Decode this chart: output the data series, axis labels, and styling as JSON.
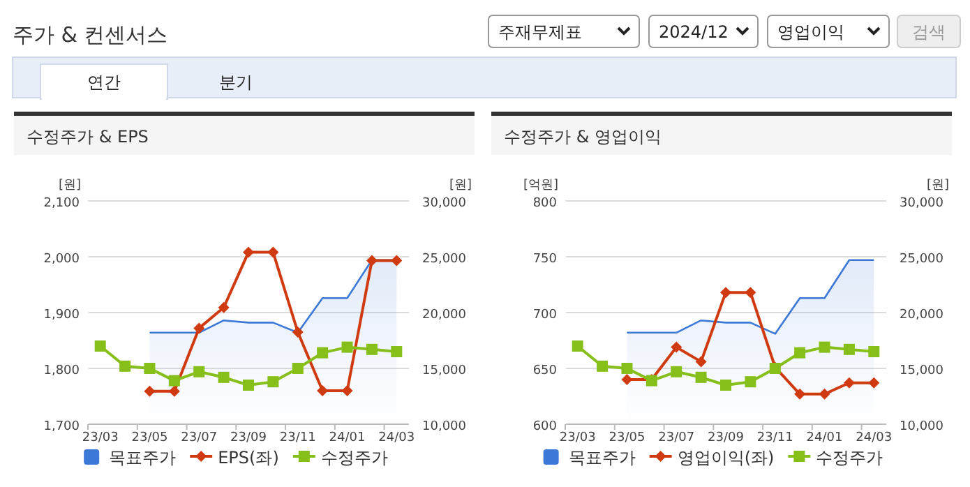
{
  "chart_data": [
    {
      "type": "other",
      "title": "주가 & 컨센서스",
      "annotations": [
        "주재무제표",
        "2024/12",
        "영업이익",
        "검색",
        "연간",
        "분기"
      ]
    },
    {
      "type": "line",
      "title": "수정주가 & EPS",
      "ylabel": "[원]",
      "y2label": "[원]",
      "categories": [
        "23/03",
        null,
        "23/05",
        null,
        "23/07",
        null,
        "23/09",
        null,
        "23/11",
        null,
        "24/01",
        null,
        "24/03"
      ],
      "series": [
        {
          "name": "목표주가",
          "type": "area",
          "axis": "y2",
          "color": "#3b78d8",
          "marker": "none",
          "values": [
            null,
            null,
            18200,
            18200,
            18200,
            19300,
            19100,
            19100,
            18200,
            21300,
            21300,
            24700,
            24700
          ]
        },
        {
          "name": "EPS(좌)",
          "type": "line",
          "axis": "y",
          "color": "#d03a10",
          "marker": "diamond",
          "values": [
            null,
            null,
            1759,
            1759,
            1872,
            1909,
            2008,
            2008,
            1865,
            1760,
            1760,
            1993,
            1993
          ]
        },
        {
          "name": "수정주가",
          "type": "line",
          "axis": "y2",
          "color": "#86bf1a",
          "marker": "square",
          "values": [
            17000,
            15200,
            15000,
            13900,
            14700,
            14200,
            13500,
            13800,
            15000,
            16400,
            16900,
            16700,
            16500
          ]
        }
      ],
      "ylim": [
        1700,
        2100
      ],
      "yticks": [
        {
          "value": 1700,
          "label": "1,700"
        },
        {
          "value": 1800,
          "label": "1,800"
        },
        {
          "value": 1900,
          "label": "1,900"
        },
        {
          "value": 2000,
          "label": "2,000"
        },
        {
          "value": 2100,
          "label": "2,100"
        }
      ],
      "y2lim": [
        10000,
        30000
      ],
      "y2ticks": [
        {
          "value": 10000,
          "label": "10,000"
        },
        {
          "value": 15000,
          "label": "15,000"
        },
        {
          "value": 20000,
          "label": "20,000"
        },
        {
          "value": 25000,
          "label": "25,000"
        },
        {
          "value": 30000,
          "label": "30,000"
        }
      ],
      "grid": "y",
      "legend": "bottom"
    },
    {
      "type": "line",
      "title": "수정주가 & 영업이익",
      "ylabel": "[억원]",
      "y2label": "[원]",
      "categories": [
        "23/03",
        null,
        "23/05",
        null,
        "23/07",
        null,
        "23/09",
        null,
        "23/11",
        null,
        "24/01",
        null,
        "24/03"
      ],
      "series": [
        {
          "name": "목표주가",
          "type": "area",
          "axis": "y2",
          "color": "#3b78d8",
          "marker": "none",
          "values": [
            null,
            null,
            18200,
            18200,
            18200,
            19300,
            19100,
            19100,
            18100,
            21300,
            21300,
            24700,
            24700
          ]
        },
        {
          "name": "영업이익(좌)",
          "type": "line",
          "axis": "y",
          "color": "#d03a10",
          "marker": "diamond",
          "values": [
            null,
            null,
            640,
            640,
            669,
            656,
            718,
            718,
            651,
            627,
            627,
            637,
            637
          ]
        },
        {
          "name": "수정주가",
          "type": "line",
          "axis": "y2",
          "color": "#86bf1a",
          "marker": "square",
          "values": [
            17000,
            15200,
            15000,
            13900,
            14700,
            14200,
            13500,
            13800,
            15000,
            16400,
            16900,
            16700,
            16500
          ]
        }
      ],
      "ylim": [
        600,
        800
      ],
      "yticks": [
        600,
        650,
        700,
        750,
        800
      ],
      "y2lim": [
        10000,
        30000
      ],
      "y2ticks": [
        {
          "value": 10000,
          "label": "10,000"
        },
        {
          "value": 15000,
          "label": "15,000"
        },
        {
          "value": 20000,
          "label": "20,000"
        },
        {
          "value": 25000,
          "label": "25,000"
        },
        {
          "value": 30000,
          "label": "30,000"
        }
      ],
      "grid": "y",
      "legend": "bottom"
    }
  ]
}
